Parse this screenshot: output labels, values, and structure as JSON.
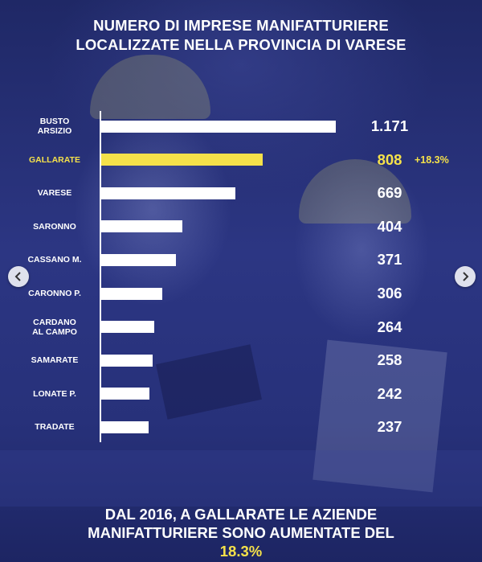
{
  "title": {
    "line1": "NUMERO DI IMPRESE MANIFATTURIERE",
    "line2": "LOCALIZZATE NELLA PROVINCIA DI VARESE"
  },
  "colors": {
    "background": "#26307a",
    "bar": "#ffffff",
    "highlight": "#f5e14a"
  },
  "chart_data": {
    "type": "bar",
    "orientation": "horizontal",
    "title": "NUMERO DI IMPRESE MANIFATTURIERE LOCALIZZATE NELLA PROVINCIA DI VARESE",
    "categories": [
      "BUSTO\nARSIZIO",
      "GALLARATE",
      "VARESE",
      "SARONNO",
      "CASSANO M.",
      "CARONNO P.",
      "CARDANO\nAL CAMPO",
      "SAMARATE",
      "LONATE P.",
      "TRADATE"
    ],
    "values": [
      1171,
      808,
      669,
      404,
      371,
      306,
      264,
      258,
      242,
      237
    ],
    "value_labels": [
      "1.171",
      "808",
      "669",
      "404",
      "371",
      "306",
      "264",
      "258",
      "242",
      "237"
    ],
    "highlight_index": 1,
    "highlight_annotation": "+18.3%",
    "xlim": [
      0,
      1171
    ],
    "grid": false,
    "legend": "none"
  },
  "footer": {
    "line1": "DAL 2016, A GALLARATE LE AZIENDE",
    "line2_prefix": "MANIFATTURIERE SONO AUMENTATE DEL ",
    "line2_highlight": "18.3%"
  },
  "icons": {
    "prev": "chevron-left-icon",
    "next": "chevron-right-icon"
  }
}
